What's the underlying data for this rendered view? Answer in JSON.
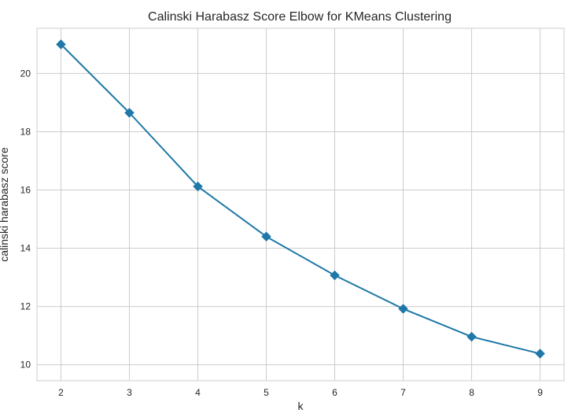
{
  "chart_data": {
    "type": "line",
    "title": "Calinski Harabasz Score Elbow for KMeans Clustering",
    "xlabel": "k",
    "ylabel": "calinski harabasz score",
    "x": [
      2,
      3,
      4,
      5,
      6,
      7,
      8,
      9
    ],
    "series": [
      {
        "values": [
          21.0,
          18.65,
          16.12,
          14.4,
          13.07,
          11.92,
          10.96,
          10.38
        ],
        "marker": "diamond"
      }
    ],
    "xticks": [
      "2",
      "3",
      "4",
      "5",
      "6",
      "7",
      "8",
      "9"
    ],
    "yticks": [
      "10",
      "12",
      "14",
      "16",
      "18",
      "20"
    ],
    "xlim": [
      1.65,
      9.35
    ],
    "ylim": [
      9.45,
      21.55
    ],
    "grid": true,
    "colors": {
      "line": "#1f78a8",
      "grid": "#cccccc",
      "axes_edge": "#cccccc",
      "text": "#262626"
    }
  }
}
